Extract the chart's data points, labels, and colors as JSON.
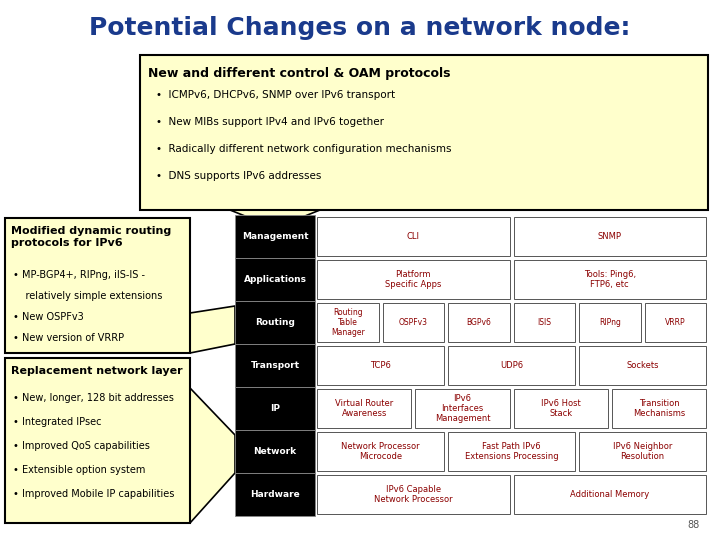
{
  "title": "Potential Changes on a network node:",
  "title_color": "#1a3a8c",
  "bg_color": "#ffffff",
  "slide_number": "88",
  "top_box": {
    "title": "New and different control & OAM protocols",
    "bullets": [
      "ICMPv6, DHCPv6, SNMP over IPv6 transport",
      "New MIBs support IPv4 and IPv6 together",
      "Radically different network configuration mechanisms",
      "DNS supports IPv6 addresses"
    ],
    "bg_color": "#ffffcc",
    "border_color": "#000000"
  },
  "left_box1": {
    "title": "Modified dynamic routing\nprotocols for IPv6",
    "bullets": [
      "MP-BGP4+, RIPng, iIS-IS -",
      "    relatively simple extensions",
      "New OSPFv3",
      "New version of VRRP"
    ],
    "bg_color": "#ffffcc",
    "border_color": "#000000"
  },
  "left_box2": {
    "title": "Replacement network layer",
    "bullets": [
      "New, longer, 128 bit addresses",
      "Integrated IPsec",
      "Improved QoS capabilities",
      "Extensible option system",
      "Improved Mobile IP capabilities"
    ],
    "bg_color": "#ffffcc",
    "border_color": "#000000"
  },
  "stack_rows": [
    {
      "label": "Management",
      "cells": [
        "CLI",
        "SNMP"
      ]
    },
    {
      "label": "Applications",
      "cells": [
        "Platform\nSpecific Apps",
        "Tools: Ping6,\nFTP6, etc"
      ]
    },
    {
      "label": "Routing",
      "cells": [
        "Routing\nTable\nManager",
        "OSPFv3",
        "BGPv6",
        "ISIS",
        "RIPng",
        "VRRP"
      ]
    },
    {
      "label": "Transport",
      "cells": [
        "TCP6",
        "UDP6",
        "Sockets"
      ]
    },
    {
      "label": "IP",
      "cells": [
        "Virtual Router\nAwareness",
        "IPv6\nInterfaces\nManagement",
        "IPv6 Host\nStack",
        "Transition\nMechanisms"
      ]
    },
    {
      "label": "Network",
      "cells": [
        "Network Processor\nMicrocode",
        "Fast Path IPv6\nExtensions Processing",
        "IPv6 Neighbor\nResolution"
      ]
    },
    {
      "label": "Hardware",
      "cells": [
        "IPv6 Capable\nNetwork Processor",
        "Additional Memory"
      ]
    }
  ],
  "label_bg": "#000000",
  "label_fg": "#ffffff",
  "cell_bg": "#ffffff",
  "cell_border": "#555555",
  "cell_text_color": "#8b0000",
  "yellow_fill": "#ffffcc"
}
